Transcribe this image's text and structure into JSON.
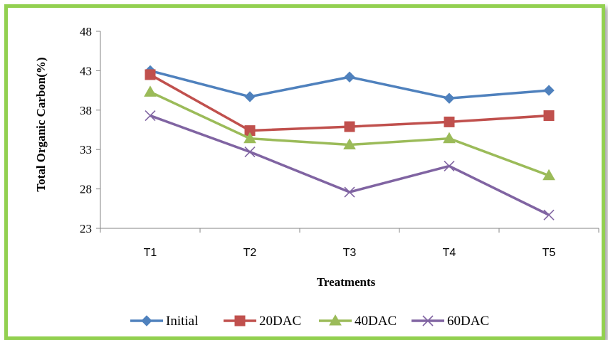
{
  "chart_data": {
    "type": "line",
    "categories": [
      "T1",
      "T2",
      "T3",
      "T4",
      "T5"
    ],
    "series": [
      {
        "name": "Initial",
        "values": [
          43.0,
          39.7,
          42.2,
          39.5,
          40.5
        ],
        "color": "#4f81bd",
        "marker": "diamond"
      },
      {
        "name": "20DAC",
        "values": [
          42.5,
          35.4,
          35.9,
          36.5,
          37.3
        ],
        "color": "#c0504d",
        "marker": "square"
      },
      {
        "name": "40DAC",
        "values": [
          40.3,
          34.4,
          33.6,
          34.4,
          29.7
        ],
        "color": "#9bbb59",
        "marker": "triangle"
      },
      {
        "name": "60DAC",
        "values": [
          37.3,
          32.7,
          27.6,
          30.9,
          24.7
        ],
        "color": "#8064a2",
        "marker": "x"
      }
    ],
    "xlabel": "Treatments",
    "ylabel": "Total Organic Carbon(%)",
    "ylim": [
      23,
      48
    ],
    "yticks": [
      "23",
      "28",
      "33",
      "38",
      "43",
      "48"
    ],
    "grid": false,
    "legend": "bottom"
  }
}
